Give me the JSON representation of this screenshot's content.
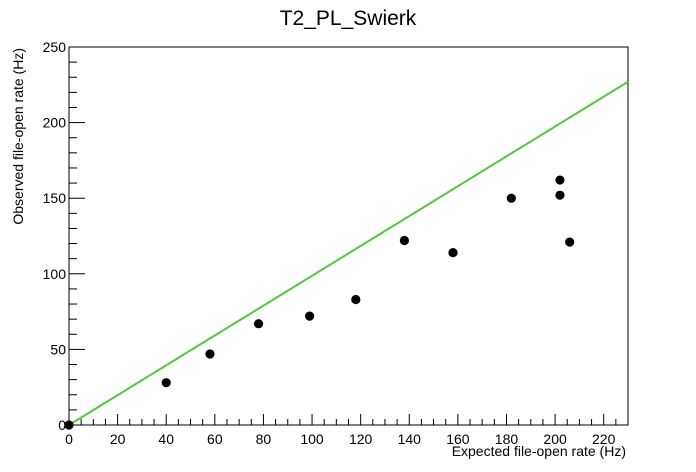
{
  "chart_data": {
    "type": "scatter",
    "title": "T2_PL_Swierk",
    "xlabel": "Expected file-open rate (Hz)",
    "ylabel": "Observed file-open rate (Hz)",
    "xlim": [
      0,
      230
    ],
    "ylim": [
      0,
      250
    ],
    "x_ticks": [
      0,
      20,
      40,
      60,
      80,
      100,
      120,
      140,
      160,
      180,
      200,
      220
    ],
    "y_ticks": [
      0,
      50,
      100,
      150,
      200,
      250
    ],
    "grid": false,
    "legend": "none",
    "series": [
      {
        "color": "#000000",
        "points": [
          {
            "x": 0,
            "y": 0
          },
          {
            "x": 40,
            "y": 28
          },
          {
            "x": 58,
            "y": 47
          },
          {
            "x": 78,
            "y": 67
          },
          {
            "x": 99,
            "y": 72
          },
          {
            "x": 118,
            "y": 83
          },
          {
            "x": 138,
            "y": 122
          },
          {
            "x": 158,
            "y": 114
          },
          {
            "x": 182,
            "y": 150
          },
          {
            "x": 202,
            "y": 152
          },
          {
            "x": 202,
            "y": 162
          },
          {
            "x": 206,
            "y": 121
          }
        ]
      }
    ],
    "reference_line": {
      "color": "#55c63f",
      "from": {
        "x": 0,
        "y": 0
      },
      "to": {
        "x": 230,
        "y": 227
      }
    }
  }
}
